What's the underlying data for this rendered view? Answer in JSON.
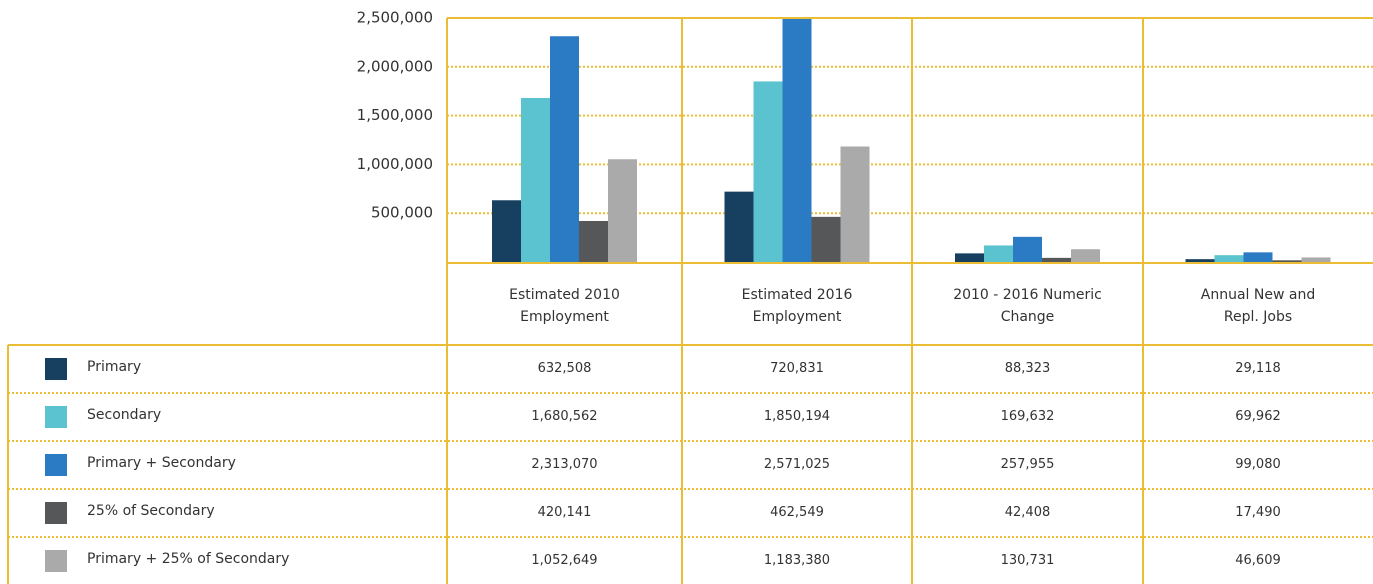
{
  "chart_data": {
    "type": "bar",
    "categories": [
      "Estimated 2010 Employment",
      "Estimated 2016 Employment",
      "2010 - 2016 Numeric Change",
      "Annual New and Repl. Jobs"
    ],
    "series": [
      {
        "name": "Primary",
        "color": "#173f5f",
        "values": [
          632508,
          720831,
          88323,
          29118
        ],
        "value_labels": [
          "632,508",
          "720,831",
          "88,323",
          "29,118"
        ]
      },
      {
        "name": "Secondary",
        "color": "#5bc3d0",
        "values": [
          1680562,
          1850194,
          169632,
          69962
        ],
        "value_labels": [
          "1,680,562",
          "1,850,194",
          "169,632",
          "69,962"
        ]
      },
      {
        "name": "Primary + Secondary",
        "color": "#2a7bc4",
        "values": [
          2313070,
          2571025,
          257955,
          99080
        ],
        "value_labels": [
          "2,313,070",
          "2,571,025",
          "257,955",
          "99,080"
        ]
      },
      {
        "name": "25% of Secondary",
        "color": "#555759",
        "values": [
          420141,
          462549,
          42408,
          17490
        ],
        "value_labels": [
          "420,141",
          "462,549",
          "42,408",
          "17,490"
        ]
      },
      {
        "name": "Primary + 25% of Secondary",
        "color": "#aaaaaa",
        "values": [
          1052649,
          1183380,
          130731,
          46609
        ],
        "value_labels": [
          "1,052,649",
          "1,183,380",
          "130,731",
          "46,609"
        ]
      }
    ],
    "ylim": [
      0,
      2500000
    ],
    "yticks": [
      {
        "value": 500000,
        "label": "500,000"
      },
      {
        "value": 1000000,
        "label": "1,000,000"
      },
      {
        "value": 1500000,
        "label": "1,500,000"
      },
      {
        "value": 2000000,
        "label": "2,000,000"
      },
      {
        "value": 2500000,
        "label": "2,500,000"
      }
    ],
    "grid": true
  }
}
